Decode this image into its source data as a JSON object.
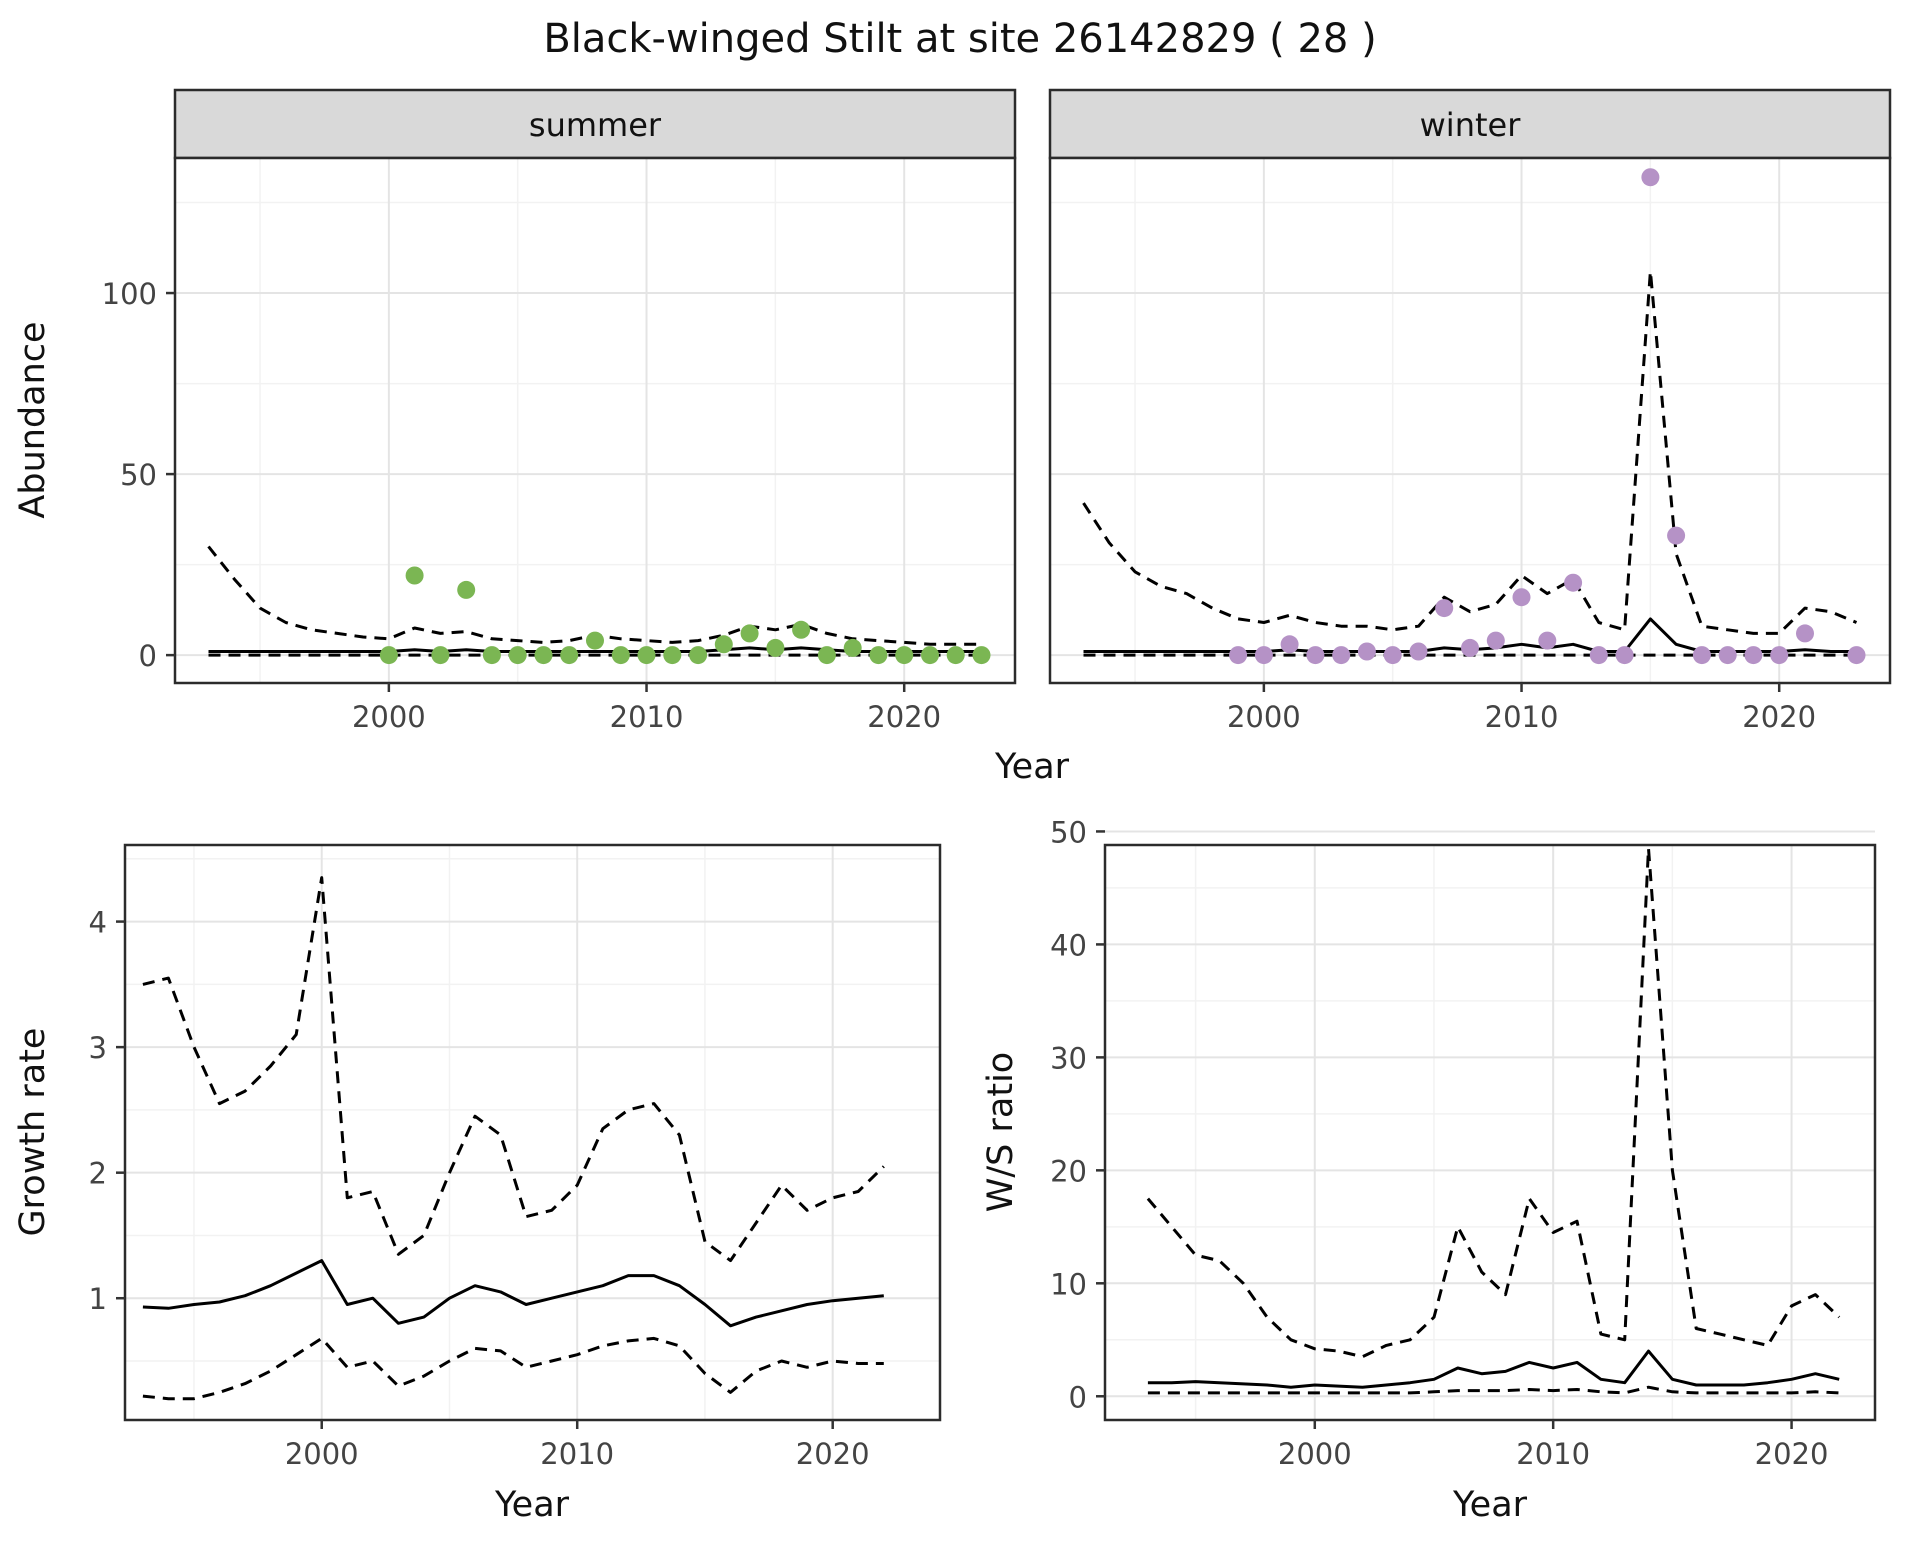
{
  "title": "Black-winged Stilt at site 26142829 ( 28 )",
  "colors": {
    "summer_point": "#7bb653",
    "winter_point": "#b592c6",
    "strip_bg": "#d9d9d9",
    "panel_border": "#2b2b2b",
    "grid_major": "#e4e4e4",
    "grid_minor": "#f2f2f2",
    "line": "#000000",
    "tick": "#333333"
  },
  "chart_data": [
    {
      "id": "abundance_summer",
      "type": "line",
      "facet": "summer",
      "xlabel": "Year",
      "ylabel": "Abundance",
      "xlim": [
        1991.7,
        2024.3
      ],
      "ylim": [
        -7.7,
        137.3
      ],
      "xticks": [
        2000,
        2010,
        2020
      ],
      "yticks": [
        0,
        50,
        100
      ],
      "grid": true,
      "legend": "none",
      "years": [
        1993,
        1994,
        1995,
        1996,
        1997,
        1998,
        1999,
        2000,
        2001,
        2002,
        2003,
        2004,
        2005,
        2006,
        2007,
        2008,
        2009,
        2010,
        2011,
        2012,
        2013,
        2014,
        2015,
        2016,
        2017,
        2018,
        2019,
        2020,
        2021,
        2022,
        2023
      ],
      "median": [
        1,
        1,
        1,
        1,
        1,
        1,
        1,
        1,
        1.5,
        1,
        1.5,
        1,
        1,
        1,
        1,
        1,
        1,
        1,
        1,
        1,
        1.5,
        2,
        1.5,
        2,
        1.5,
        1,
        1,
        1,
        1,
        1,
        1
      ],
      "upper": [
        30,
        21,
        13,
        9,
        7,
        6,
        5,
        4.5,
        7.5,
        6,
        6.5,
        4.5,
        4,
        3.5,
        4,
        5.5,
        4.5,
        4,
        3.5,
        4,
        5.5,
        8,
        7,
        8.5,
        6,
        4.5,
        4,
        3.5,
        3,
        3,
        3
      ],
      "lower": [
        0,
        0,
        0,
        0,
        0,
        0,
        0,
        0,
        0,
        0,
        0,
        0,
        0,
        0,
        0,
        0,
        0,
        0,
        0,
        0,
        0,
        0,
        0,
        0,
        0,
        0,
        0,
        0,
        0,
        0,
        0
      ],
      "points": {
        "years": [
          2000,
          2001,
          2002,
          2003,
          2004,
          2005,
          2006,
          2007,
          2008,
          2009,
          2010,
          2011,
          2012,
          2013,
          2014,
          2015,
          2016,
          2017,
          2018,
          2019,
          2020,
          2021,
          2022,
          2023
        ],
        "values": [
          0,
          22,
          0,
          18,
          0,
          0,
          0,
          0,
          4,
          0,
          0,
          0,
          0,
          3,
          6,
          2,
          7,
          0,
          2,
          0,
          0,
          0,
          0,
          0
        ]
      }
    },
    {
      "id": "abundance_winter",
      "type": "line",
      "facet": "winter",
      "xlabel": "Year",
      "ylabel": "Abundance",
      "xlim": [
        1991.7,
        2024.3
      ],
      "ylim": [
        -7.7,
        137.3
      ],
      "xticks": [
        2000,
        2010,
        2020
      ],
      "yticks": [
        0,
        50,
        100
      ],
      "grid": true,
      "legend": "none",
      "years": [
        1993,
        1994,
        1995,
        1996,
        1997,
        1998,
        1999,
        2000,
        2001,
        2002,
        2003,
        2004,
        2005,
        2006,
        2007,
        2008,
        2009,
        2010,
        2011,
        2012,
        2013,
        2014,
        2015,
        2016,
        2017,
        2018,
        2019,
        2020,
        2021,
        2022,
        2023
      ],
      "median": [
        1,
        1,
        1,
        1,
        1,
        1,
        1,
        1,
        1.5,
        1,
        1,
        1,
        1,
        1,
        2,
        1.5,
        2,
        3,
        2,
        3,
        1,
        1,
        10,
        3,
        1,
        1,
        1,
        1,
        1.5,
        1,
        1
      ],
      "upper": [
        42,
        31,
        23,
        19,
        17,
        13,
        10,
        9,
        11,
        9,
        8,
        8,
        7,
        8,
        16,
        12,
        14,
        22,
        17,
        21,
        9,
        7,
        106,
        28,
        8,
        7,
        6,
        6,
        13,
        12,
        9
      ],
      "lower": [
        0,
        0,
        0,
        0,
        0,
        0,
        0,
        0,
        0,
        0,
        0,
        0,
        0,
        0,
        0,
        0,
        0,
        0,
        0,
        0,
        0,
        0,
        0,
        0,
        0,
        0,
        0,
        0,
        0,
        0,
        0
      ],
      "points": {
        "years": [
          1999,
          2000,
          2001,
          2002,
          2003,
          2004,
          2005,
          2006,
          2007,
          2008,
          2009,
          2010,
          2011,
          2012,
          2013,
          2014,
          2015,
          2016,
          2017,
          2018,
          2019,
          2020,
          2021,
          2023
        ],
        "values": [
          0,
          0,
          3,
          0,
          0,
          1,
          0,
          1,
          13,
          2,
          4,
          16,
          4,
          20,
          0,
          0,
          132,
          33,
          0,
          0,
          0,
          0,
          6,
          0
        ]
      }
    },
    {
      "id": "growth_rate",
      "type": "line",
      "facet": "",
      "xlabel": "Year",
      "ylabel": "Growth rate",
      "xlim": [
        1992.3,
        2024.2
      ],
      "ylim": [
        0.03,
        4.61
      ],
      "xticks": [
        2000,
        2010,
        2020
      ],
      "yticks": [
        1,
        2,
        3,
        4
      ],
      "grid": true,
      "legend": "none",
      "years": [
        1993,
        1994,
        1995,
        1996,
        1997,
        1998,
        1999,
        2000,
        2001,
        2002,
        2003,
        2004,
        2005,
        2006,
        2007,
        2008,
        2009,
        2010,
        2011,
        2012,
        2013,
        2014,
        2015,
        2016,
        2017,
        2018,
        2019,
        2020,
        2021,
        2022
      ],
      "median": [
        0.93,
        0.92,
        0.95,
        0.97,
        1.02,
        1.1,
        1.2,
        1.3,
        0.95,
        1.0,
        0.8,
        0.85,
        1.0,
        1.1,
        1.05,
        0.95,
        1.0,
        1.05,
        1.1,
        1.18,
        1.18,
        1.1,
        0.95,
        0.78,
        0.85,
        0.9,
        0.95,
        0.98,
        1.0,
        1.02
      ],
      "upper": [
        3.5,
        3.55,
        3.0,
        2.55,
        2.65,
        2.85,
        3.1,
        4.35,
        1.8,
        1.85,
        1.35,
        1.5,
        2.0,
        2.45,
        2.3,
        1.65,
        1.7,
        1.9,
        2.35,
        2.5,
        2.55,
        2.3,
        1.45,
        1.3,
        1.6,
        1.9,
        1.7,
        1.8,
        1.85,
        2.05
      ],
      "lower": [
        0.22,
        0.2,
        0.2,
        0.25,
        0.32,
        0.42,
        0.55,
        0.68,
        0.45,
        0.5,
        0.3,
        0.38,
        0.5,
        0.6,
        0.58,
        0.45,
        0.5,
        0.55,
        0.62,
        0.66,
        0.68,
        0.62,
        0.4,
        0.25,
        0.42,
        0.5,
        0.45,
        0.5,
        0.48,
        0.48
      ]
    },
    {
      "id": "ws_ratio",
      "type": "line",
      "facet": "",
      "xlabel": "Year",
      "ylabel": "W/S ratio",
      "xlim": [
        1991.2,
        2023.5
      ],
      "ylim": [
        -2.1,
        48.8
      ],
      "xticks": [
        2000,
        2010,
        2020
      ],
      "yticks": [
        0,
        10,
        20,
        30,
        40,
        50
      ],
      "grid": true,
      "legend": "none",
      "years": [
        1993,
        1994,
        1995,
        1996,
        1997,
        1998,
        1999,
        2000,
        2001,
        2002,
        2003,
        2004,
        2005,
        2006,
        2007,
        2008,
        2009,
        2010,
        2011,
        2012,
        2013,
        2014,
        2015,
        2016,
        2017,
        2018,
        2019,
        2020,
        2021,
        2022
      ],
      "median": [
        1.2,
        1.2,
        1.3,
        1.2,
        1.1,
        1.0,
        0.8,
        1.0,
        0.9,
        0.8,
        1.0,
        1.2,
        1.5,
        2.5,
        2.0,
        2.2,
        3.0,
        2.5,
        3.0,
        1.5,
        1.2,
        4.0,
        1.5,
        1.0,
        1.0,
        1.0,
        1.2,
        1.5,
        2.0,
        1.5
      ],
      "upper": [
        17.5,
        15,
        12.5,
        12,
        10,
        7,
        5,
        4.2,
        4,
        3.5,
        4.5,
        5,
        7,
        15,
        11,
        9,
        17.5,
        14.5,
        15.5,
        5.5,
        5,
        48.5,
        20,
        6,
        5.5,
        5,
        4.5,
        8,
        9,
        7
      ],
      "lower": [
        0.3,
        0.3,
        0.3,
        0.3,
        0.3,
        0.3,
        0.3,
        0.3,
        0.3,
        0.3,
        0.3,
        0.3,
        0.4,
        0.5,
        0.5,
        0.5,
        0.6,
        0.5,
        0.6,
        0.4,
        0.3,
        0.8,
        0.4,
        0.3,
        0.3,
        0.3,
        0.3,
        0.3,
        0.4,
        0.3
      ]
    }
  ]
}
